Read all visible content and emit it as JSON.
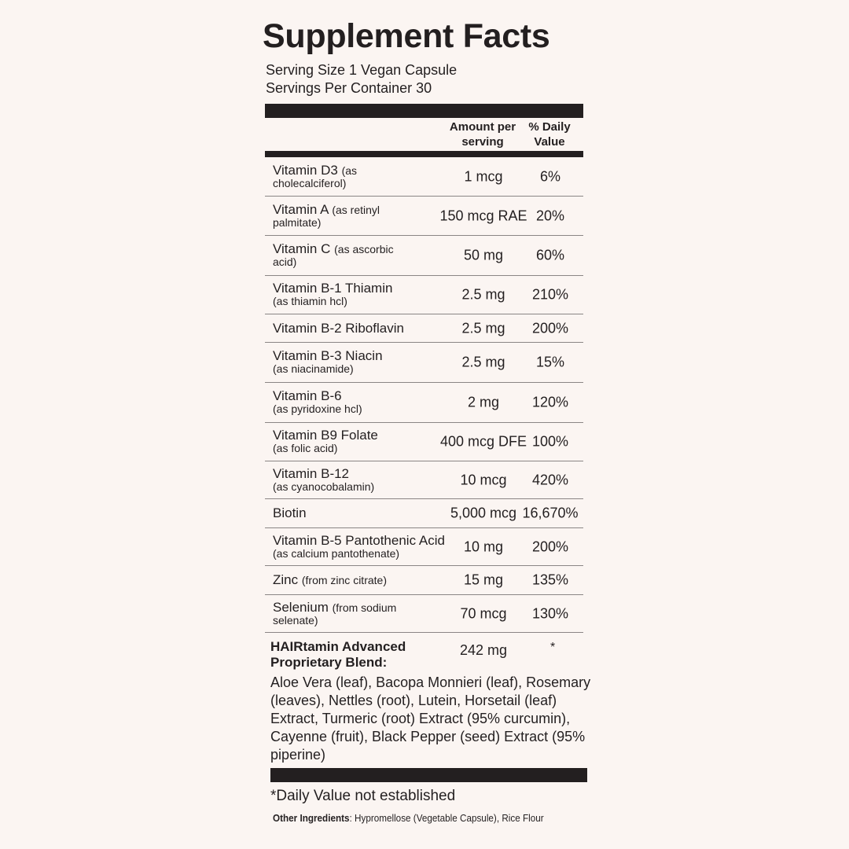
{
  "title": "Supplement Facts",
  "serving_size": "Serving Size 1 Vegan Capsule",
  "servings_per_container": "Servings Per Container 30",
  "header": {
    "amount": "Amount per serving",
    "daily_value": "% Daily Value"
  },
  "rows": [
    {
      "name": "Vitamin D3",
      "detail": "(as",
      "detail2": "cholecalciferol)",
      "amount": "1 mcg",
      "dv": "6%"
    },
    {
      "name": "Vitamin A",
      "detail": "(as retinyl",
      "detail2": "palmitate)",
      "amount": "150 mcg RAE",
      "dv": "20%"
    },
    {
      "name": "Vitamin C",
      "detail": "(as ascorbic",
      "detail2": "acid)",
      "amount": "50 mg",
      "dv": "60%"
    },
    {
      "name": "Vitamin B-1 Thiamin",
      "detail": "",
      "detail2": "(as thiamin hcl)",
      "amount": "2.5 mg",
      "dv": "210%"
    },
    {
      "name": "Vitamin B-2 Riboflavin",
      "detail": "",
      "detail2": "",
      "amount": "2.5 mg",
      "dv": "200%"
    },
    {
      "name": "Vitamin B-3 Niacin",
      "detail": "",
      "detail2": "(as niacinamide)",
      "amount": "2.5 mg",
      "dv": "15%"
    },
    {
      "name": "Vitamin B-6",
      "detail": "",
      "detail2": "(as pyridoxine hcl)",
      "amount": "2 mg",
      "dv": "120%"
    },
    {
      "name": "Vitamin B9 Folate",
      "detail": "",
      "detail2": "(as folic acid)",
      "amount": "400 mcg DFE",
      "dv": "100%"
    },
    {
      "name": "Vitamin B-12",
      "detail": "",
      "detail2": "(as cyanocobalamin)",
      "amount": "10 mcg",
      "dv": "420%"
    },
    {
      "name": "Biotin",
      "detail": "",
      "detail2": "",
      "amount": "5,000 mcg",
      "dv": "16,670%"
    },
    {
      "name": "Vitamin B-5 Pantothenic Acid",
      "detail": "(as calcium pantothenate)",
      "detail2": "",
      "amount": "10 mg",
      "dv": "200%"
    },
    {
      "name": "Zinc",
      "detail": "(from zinc citrate)",
      "detail2": "",
      "amount": "15 mg",
      "dv": "135%"
    },
    {
      "name": "Selenium",
      "detail": "(from sodium",
      "detail2": "selenate)",
      "amount": "70 mcg",
      "dv": "130%"
    }
  ],
  "blend": {
    "name": "HAIRtamin Advanced Proprietary Blend:",
    "amount": "242 mg",
    "dv": "*",
    "ingredients": "Aloe Vera (leaf), Bacopa Monnieri (leaf), Rosemary (leaves), Nettles (root), Lutein, Horsetail (leaf) Extract, Turmeric (root) Extract (95% curcumin), Cayenne (fruit), Black Pepper (seed) Extract (95% piperine)"
  },
  "footnote": "*Daily Value not established",
  "other": {
    "label": "Other Ingredients",
    "text": ": Hypromellose (Vegetable Capsule),  Rice Flour"
  }
}
